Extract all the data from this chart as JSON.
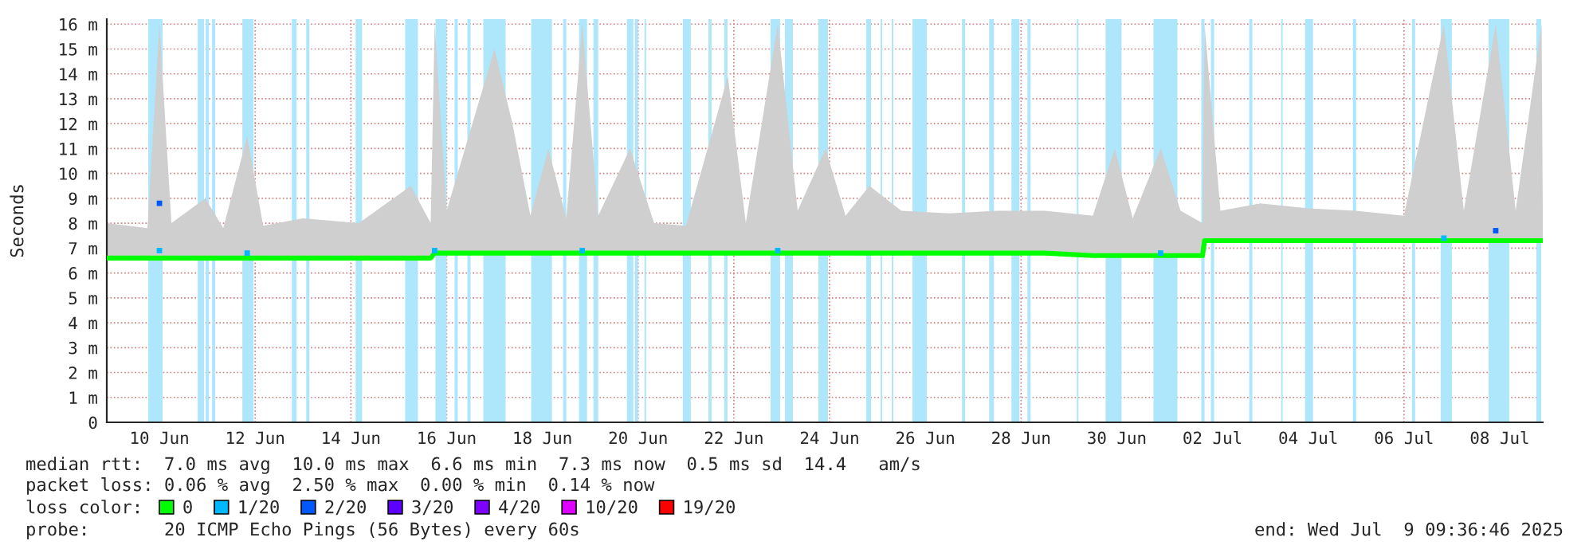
{
  "chart_data": {
    "type": "line",
    "ylabel": "Seconds",
    "legend_title": "loss color:",
    "legend": "bottom",
    "grid": true,
    "line_style": "solid",
    "xlim": [
      "2025-06-09T09:36",
      "2025-07-09T09:36"
    ],
    "xticks": [
      {
        "value": "2025-06-10T12:00",
        "label": "10 Jun"
      },
      {
        "value": "2025-06-12T12:00",
        "label": "12 Jun"
      },
      {
        "value": "2025-06-14T12:00",
        "label": "14 Jun"
      },
      {
        "value": "2025-06-16T12:00",
        "label": "16 Jun"
      },
      {
        "value": "2025-06-18T12:00",
        "label": "18 Jun"
      },
      {
        "value": "2025-06-20T12:00",
        "label": "20 Jun"
      },
      {
        "value": "2025-06-22T12:00",
        "label": "22 Jun"
      },
      {
        "value": "2025-06-24T12:00",
        "label": "24 Jun"
      },
      {
        "value": "2025-06-26T12:00",
        "label": "26 Jun"
      },
      {
        "value": "2025-06-28T12:00",
        "label": "28 Jun"
      },
      {
        "value": "2025-06-30T12:00",
        "label": "30 Jun"
      },
      {
        "value": "2025-07-02T12:00",
        "label": "02 Jul"
      },
      {
        "value": "2025-07-04T12:00",
        "label": "04 Jul"
      },
      {
        "value": "2025-07-06T12:00",
        "label": "06 Jul"
      },
      {
        "value": "2025-07-08T12:00",
        "label": "08 Jul"
      }
    ],
    "ylim": [
      0,
      16.2
    ],
    "yticks": [
      0,
      {
        "value": 1,
        "label": "1 m"
      },
      {
        "value": 2,
        "label": "2 m"
      },
      {
        "value": 3,
        "label": "3 m"
      },
      {
        "value": 4,
        "label": "4 m"
      },
      {
        "value": 5,
        "label": "5 m"
      },
      {
        "value": 6,
        "label": "6 m"
      },
      {
        "value": 7,
        "label": "7 m"
      },
      {
        "value": 8,
        "label": "8 m"
      },
      {
        "value": 9,
        "label": "9 m"
      },
      {
        "value": 10,
        "label": "10 m"
      },
      {
        "value": 11,
        "label": "11 m"
      },
      {
        "value": 12,
        "label": "12 m"
      },
      {
        "value": 13,
        "label": "13 m"
      },
      {
        "value": 14,
        "label": "14 m"
      },
      {
        "value": 15,
        "label": "15 m"
      },
      {
        "value": 16,
        "label": "16 m"
      }
    ],
    "series": [
      {
        "name": "0",
        "color": "#00ff00",
        "x": [
          "2025-06-09T09:36",
          "2025-06-10T06:00",
          "2025-06-10T12:00",
          "2025-06-10T18:00",
          "2025-06-11T11:00",
          "2025-06-11T20:00",
          "2025-06-12T08:00",
          "2025-06-12T16:00",
          "2025-06-13T12:00",
          "2025-06-14T16:00",
          "2025-06-15T18:00",
          "2025-06-16T04:00",
          "2025-06-16T06:00",
          "2025-06-16T12:00",
          "2025-06-17T12:00",
          "2025-06-17T21:00",
          "2025-06-18T06:00",
          "2025-06-18T15:00",
          "2025-06-19T00:00",
          "2025-06-19T08:00",
          "2025-06-19T16:00",
          "2025-06-20T08:00",
          "2025-06-20T20:00",
          "2025-06-21T12:00",
          "2025-06-22T09:00",
          "2025-06-22T18:00",
          "2025-06-23T10:00",
          "2025-06-23T20:00",
          "2025-06-24T10:00",
          "2025-06-24T20:00",
          "2025-06-25T08:00",
          "2025-06-26T00:00",
          "2025-06-27T00:00",
          "2025-06-28T00:00",
          "2025-06-29T00:00",
          "2025-06-30T00:00",
          "2025-06-30T11:00",
          "2025-06-30T20:00",
          "2025-07-01T10:00",
          "2025-07-01T20:00",
          "2025-07-02T07:00",
          "2025-07-02T08:00",
          "2025-07-02T16:00",
          "2025-07-03T12:00",
          "2025-07-04T12:00",
          "2025-07-05T12:00",
          "2025-07-06T12:00",
          "2025-07-07T08:00",
          "2025-07-07T18:00",
          "2025-07-08T10:00",
          "2025-07-08T20:00",
          "2025-07-09T09:00",
          "2025-07-09T09:36"
        ],
        "values": [
          6.6,
          6.6,
          6.6,
          6.6,
          6.6,
          6.6,
          6.6,
          6.6,
          6.6,
          6.6,
          6.6,
          6.6,
          6.8,
          6.8,
          6.8,
          6.8,
          6.8,
          6.8,
          6.8,
          6.8,
          6.8,
          6.8,
          6.8,
          6.8,
          6.8,
          6.8,
          6.8,
          6.8,
          6.8,
          6.8,
          6.8,
          6.8,
          6.8,
          6.8,
          6.8,
          6.7,
          6.7,
          6.7,
          6.7,
          6.7,
          6.7,
          7.3,
          7.3,
          7.3,
          7.3,
          7.3,
          7.3,
          7.3,
          7.3,
          7.3,
          7.3,
          7.3,
          7.3
        ],
        "lower": [
          6.6,
          6.6,
          6.6,
          6.6,
          6.6,
          6.6,
          6.6,
          6.6,
          6.6,
          6.6,
          6.6,
          6.6,
          6.8,
          6.8,
          6.8,
          6.8,
          6.8,
          6.8,
          6.8,
          6.8,
          6.8,
          6.8,
          6.8,
          6.8,
          6.8,
          6.8,
          6.8,
          6.8,
          6.8,
          6.8,
          6.8,
          6.8,
          6.8,
          6.8,
          6.8,
          6.7,
          6.7,
          6.7,
          6.7,
          6.7,
          6.7,
          7.3,
          7.3,
          7.3,
          7.3,
          7.3,
          7.3,
          7.3,
          7.3,
          7.3,
          7.3,
          7.3,
          7.3
        ],
        "upper": [
          8.0,
          7.8,
          16.0,
          8.0,
          9.0,
          7.8,
          11.5,
          7.9,
          8.2,
          8.0,
          9.5,
          8.0,
          16.0,
          8.5,
          15.0,
          12.0,
          8.3,
          11.0,
          8.2,
          16.0,
          8.3,
          11.0,
          8.0,
          7.9,
          13.9,
          8.0,
          16.0,
          8.5,
          11.0,
          8.3,
          9.5,
          8.5,
          8.4,
          8.5,
          8.5,
          8.3,
          11.0,
          8.2,
          11.0,
          8.5,
          8.0,
          16.0,
          8.5,
          8.8,
          8.6,
          8.5,
          8.3,
          16.0,
          8.5,
          16.0,
          8.5,
          16.0,
          8.5
        ]
      },
      {
        "name": "1/20",
        "type": "scatter",
        "color": "#00b8ff",
        "x": [
          "2025-06-10T12:00",
          "2025-06-12T08:00",
          "2025-06-16T06:00",
          "2025-06-19T08:00",
          "2025-06-23T10:00",
          "2025-07-01T10:00",
          "2025-07-07T08:00"
        ],
        "values": [
          6.9,
          6.8,
          6.9,
          6.9,
          6.9,
          6.8,
          7.4
        ]
      },
      {
        "name": "2/20",
        "type": "scatter",
        "color": "#0059ff",
        "x": [
          "2025-06-10T12:00",
          "2025-07-08T10:00"
        ],
        "values": [
          8.8,
          7.7
        ]
      },
      {
        "name": "3/20",
        "type": "scatter",
        "color": "#5e00ff"
      },
      {
        "name": "4/20",
        "type": "scatter",
        "color": "#7e00ff"
      },
      {
        "name": "10/20",
        "type": "scatter",
        "color": "#dd00ff"
      },
      {
        "name": "19/20",
        "type": "scatter",
        "color": "#ff0000"
      }
    ],
    "bands": [
      {
        "axis": "x",
        "from": "2025-06-10T06:24",
        "to": "2025-06-10T13:36",
        "color": "#aee6fb"
      },
      {
        "axis": "x",
        "from": "2025-06-11T07:12",
        "to": "2025-06-11T10:24",
        "color": "#aee6fb"
      },
      {
        "axis": "x",
        "from": "2025-06-11T11:12",
        "to": "2025-06-11T12:48",
        "color": "#aee6fb"
      },
      {
        "axis": "x",
        "from": "2025-06-11T14:24",
        "to": "2025-06-11T16:00",
        "color": "#aee6fb"
      },
      {
        "axis": "x",
        "from": "2025-06-12T05:36",
        "to": "2025-06-12T11:12",
        "color": "#aee6fb"
      },
      {
        "axis": "x",
        "from": "2025-06-13T06:24",
        "to": "2025-06-13T08:48",
        "color": "#aee6fb"
      },
      {
        "axis": "x",
        "from": "2025-06-13T13:36",
        "to": "2025-06-13T15:12",
        "color": "#aee6fb"
      },
      {
        "axis": "x",
        "from": "2025-06-14T14:24",
        "to": "2025-06-14T17:36",
        "color": "#aee6fb"
      },
      {
        "axis": "x",
        "from": "2025-06-15T15:12",
        "to": "2025-06-15T21:36",
        "color": "#aee6fb"
      },
      {
        "axis": "x",
        "from": "2025-06-16T06:24",
        "to": "2025-06-16T12:00",
        "color": "#aee6fb"
      },
      {
        "axis": "x",
        "from": "2025-06-16T16:00",
        "to": "2025-06-16T17:36",
        "color": "#aee6fb"
      },
      {
        "axis": "x",
        "from": "2025-06-16T22:24",
        "to": "2025-06-17T00:00",
        "color": "#aee6fb"
      },
      {
        "axis": "x",
        "from": "2025-06-17T06:24",
        "to": "2025-06-17T17:36",
        "color": "#aee6fb"
      },
      {
        "axis": "x",
        "from": "2025-06-18T06:24",
        "to": "2025-06-18T16:48",
        "color": "#aee6fb"
      },
      {
        "axis": "x",
        "from": "2025-06-18T22:24",
        "to": "2025-06-19T00:00",
        "color": "#aee6fb"
      },
      {
        "axis": "x",
        "from": "2025-06-19T06:24",
        "to": "2025-06-19T10:24",
        "color": "#aee6fb"
      },
      {
        "axis": "x",
        "from": "2025-06-19T13:36",
        "to": "2025-06-19T16:00",
        "color": "#aee6fb"
      },
      {
        "axis": "x",
        "from": "2025-06-20T06:24",
        "to": "2025-06-20T09:36",
        "color": "#aee6fb"
      },
      {
        "axis": "x",
        "from": "2025-06-20T10:24",
        "to": "2025-06-20T12:00",
        "color": "#aee6fb"
      },
      {
        "axis": "x",
        "from": "2025-06-20T15:12",
        "to": "2025-06-20T16:00",
        "color": "#aee6fb"
      },
      {
        "axis": "x",
        "from": "2025-06-21T10:24",
        "to": "2025-06-21T14:24",
        "color": "#aee6fb"
      },
      {
        "axis": "x",
        "from": "2025-06-21T23:12",
        "to": "2025-06-22T00:48",
        "color": "#aee6fb"
      },
      {
        "axis": "x",
        "from": "2025-06-22T07:12",
        "to": "2025-06-22T08:48",
        "color": "#aee6fb"
      },
      {
        "axis": "x",
        "from": "2025-06-23T06:24",
        "to": "2025-06-23T11:12",
        "color": "#aee6fb"
      },
      {
        "axis": "x",
        "from": "2025-06-23T13:36",
        "to": "2025-06-23T17:36",
        "color": "#aee6fb"
      },
      {
        "axis": "x",
        "from": "2025-06-24T06:24",
        "to": "2025-06-24T11:12",
        "color": "#aee6fb"
      },
      {
        "axis": "x",
        "from": "2025-06-25T06:24",
        "to": "2025-06-25T08:48",
        "color": "#aee6fb"
      },
      {
        "axis": "x",
        "from": "2025-06-25T13:36",
        "to": "2025-06-25T14:24",
        "color": "#aee6fb"
      },
      {
        "axis": "x",
        "from": "2025-06-25T19:12",
        "to": "2025-06-25T20:00",
        "color": "#aee6fb"
      },
      {
        "axis": "x",
        "from": "2025-06-26T05:36",
        "to": "2025-06-26T12:48",
        "color": "#aee6fb"
      },
      {
        "axis": "x",
        "from": "2025-06-27T06:24",
        "to": "2025-06-27T08:00",
        "color": "#aee6fb"
      },
      {
        "axis": "x",
        "from": "2025-06-27T20:00",
        "to": "2025-06-27T22:24",
        "color": "#aee6fb"
      },
      {
        "axis": "x",
        "from": "2025-06-28T07:12",
        "to": "2025-06-28T11:12",
        "color": "#aee6fb"
      },
      {
        "axis": "x",
        "from": "2025-06-28T15:12",
        "to": "2025-06-28T16:48",
        "color": "#aee6fb"
      },
      {
        "axis": "x",
        "from": "2025-06-29T16:00",
        "to": "2025-06-29T16:48",
        "color": "#aee6fb"
      },
      {
        "axis": "x",
        "from": "2025-06-30T06:24",
        "to": "2025-06-30T14:24",
        "color": "#aee6fb"
      },
      {
        "axis": "x",
        "from": "2025-07-01T06:24",
        "to": "2025-07-01T18:24",
        "color": "#aee6fb"
      },
      {
        "axis": "x",
        "from": "2025-07-02T06:24",
        "to": "2025-07-02T08:00",
        "color": "#aee6fb"
      },
      {
        "axis": "x",
        "from": "2025-07-02T11:12",
        "to": "2025-07-02T12:48",
        "color": "#aee6fb"
      },
      {
        "axis": "x",
        "from": "2025-07-03T06:24",
        "to": "2025-07-03T08:00",
        "color": "#aee6fb"
      },
      {
        "axis": "x",
        "from": "2025-07-03T22:24",
        "to": "2025-07-03T23:12",
        "color": "#aee6fb"
      },
      {
        "axis": "x",
        "from": "2025-07-04T10:24",
        "to": "2025-07-04T14:24",
        "color": "#aee6fb"
      },
      {
        "axis": "x",
        "from": "2025-07-05T10:24",
        "to": "2025-07-05T12:00",
        "color": "#aee6fb"
      },
      {
        "axis": "x",
        "from": "2025-07-06T16:00",
        "to": "2025-07-06T17:36",
        "color": "#aee6fb"
      },
      {
        "axis": "x",
        "from": "2025-07-07T06:24",
        "to": "2025-07-07T12:00",
        "color": "#aee6fb"
      },
      {
        "axis": "x",
        "from": "2025-07-08T06:24",
        "to": "2025-07-08T16:48",
        "color": "#aee6fb"
      },
      {
        "axis": "x",
        "from": "2025-07-09T06:24",
        "to": "2025-07-09T08:48",
        "color": "#aee6fb"
      }
    ],
    "annotations": [
      "median rtt:  7.0 ms avg  10.0 ms max  6.6 ms min  7.3 ms now  0.5 ms sd  14.4   am/s",
      "packet loss: 0.06 % avg  2.50 % max  0.00 % min  0.14 % now",
      "probe:       20 ICMP Echo Pings (56 Bytes) every 60s",
      "end: Wed Jul  9 09:36:46 2025"
    ]
  }
}
